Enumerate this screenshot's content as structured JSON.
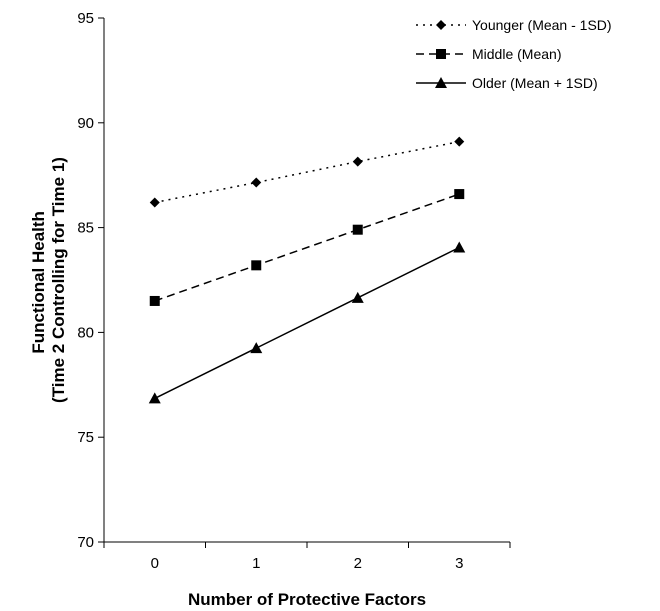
{
  "chart_data": {
    "type": "line",
    "title": "",
    "xlabel": "Number of Protective Factors",
    "ylabel_lines": [
      "Functional Health",
      "(Time 2 Controlling for Time 1)"
    ],
    "x": [
      0,
      1,
      2,
      3
    ],
    "x_tick_labels": [
      "0",
      "1",
      "2",
      "3"
    ],
    "ylim": [
      70,
      95
    ],
    "y_ticks": [
      70,
      75,
      80,
      85,
      90,
      95
    ],
    "grid": false,
    "legend_position": "top-right",
    "series": [
      {
        "name": "Younger (Mean - 1SD)",
        "marker": "diamond",
        "line_style": "dotted",
        "color": "#000000",
        "values": [
          86.2,
          87.15,
          88.15,
          89.1
        ]
      },
      {
        "name": "Middle (Mean)",
        "marker": "square",
        "line_style": "dashed",
        "color": "#000000",
        "values": [
          81.5,
          83.2,
          84.9,
          86.6
        ]
      },
      {
        "name": "Older (Mean + 1SD)",
        "marker": "triangle",
        "line_style": "solid",
        "color": "#000000",
        "values": [
          76.85,
          79.25,
          81.65,
          84.05
        ]
      }
    ]
  }
}
